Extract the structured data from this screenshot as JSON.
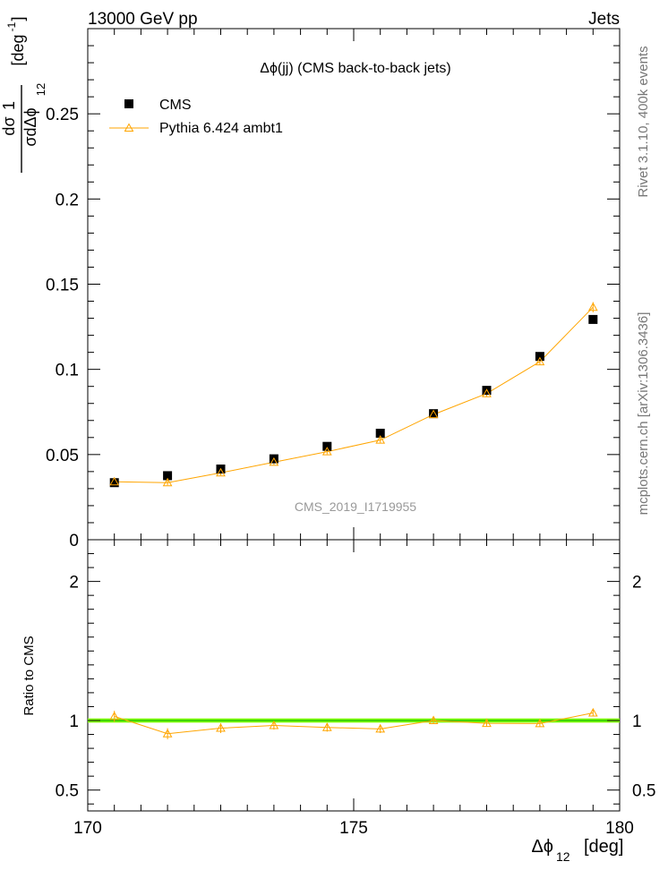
{
  "header": {
    "left": "13000 GeV pp",
    "right": "Jets",
    "side_top": "Rivet 3.1.10, 400k events",
    "side_bottom": "mcplots.cern.ch [arXiv:1306.3436]",
    "watermark": "CMS_2019_I1719955"
  },
  "chart_data": [
    {
      "type": "scatter",
      "title": "Δϕ(jj) (CMS back-to-back jets)",
      "ylabel_num": "1",
      "ylabel_d_sigma": "dσ",
      "ylabel_den": "σdΔϕ",
      "ylabel_den_sub": "12",
      "ylabel_unit": "[deg",
      "ylabel_unit_sup": "-1",
      "ylabel_unit_close": "]",
      "xlim": [
        170,
        180
      ],
      "ylim": [
        0,
        0.3
      ],
      "ytick_values": [
        0,
        0.05,
        0.1,
        0.15,
        0.2,
        0.25
      ],
      "ytick_labels": [
        "0",
        "0.05",
        "0.1",
        "0.15",
        "0.2",
        "0.25"
      ],
      "legend_placement": "top-left",
      "series": [
        {
          "name": "CMS",
          "marker": "filled-square",
          "color": "#000000",
          "x": [
            170.5,
            171.5,
            172.5,
            173.5,
            174.5,
            175.5,
            176.5,
            177.5,
            178.5,
            179.5
          ],
          "y": [
            0.0335,
            0.0376,
            0.0415,
            0.0475,
            0.0548,
            0.0625,
            0.074,
            0.0877,
            0.1076,
            0.1293
          ]
        },
        {
          "name": "Pythia 6.424 ambt1",
          "marker": "open-triangle",
          "color": "#ffa500",
          "x": [
            170.5,
            171.5,
            172.5,
            173.5,
            174.5,
            175.5,
            176.5,
            177.5,
            178.5,
            179.5
          ],
          "y": [
            0.034,
            0.0335,
            0.0393,
            0.0455,
            0.0517,
            0.0585,
            0.0735,
            0.0858,
            0.1045,
            0.1365
          ],
          "yerr": [
            0.0015,
            0.0015,
            0.0015,
            0.0015,
            0.0015,
            0.0015,
            0.0015,
            0.0018,
            0.002,
            0.003
          ]
        }
      ]
    },
    {
      "type": "scatter",
      "ylabel": "Ratio to CMS",
      "xlabel": "Δϕ",
      "xlabel_sub": "12",
      "xlabel_unit": "[deg]",
      "xlim": [
        170,
        180
      ],
      "ylim": [
        0.35,
        2.3
      ],
      "xtick_values": [
        170,
        175,
        180
      ],
      "xtick_labels": [
        "170",
        "175",
        "180"
      ],
      "ytick_values": [
        0.5,
        1,
        2
      ],
      "ytick_labels": [
        "0.5",
        "1",
        "2"
      ],
      "band": {
        "y_low": 0.985,
        "y_high": 1.015,
        "color": "#7fff00"
      },
      "reference_line": {
        "y": 1.0,
        "color": "#00aa00"
      },
      "series": [
        {
          "name": "Pythia 6.424 ambt1",
          "marker": "open-triangle",
          "color": "#ffa500",
          "x": [
            170.5,
            171.5,
            172.5,
            173.5,
            174.5,
            175.5,
            176.5,
            177.5,
            178.5,
            179.5
          ],
          "y": [
            1.03,
            0.905,
            0.945,
            0.965,
            0.95,
            0.94,
            1.0,
            0.98,
            0.978,
            1.055
          ],
          "yerr": [
            0.04,
            0.04,
            0.035,
            0.03,
            0.03,
            0.03,
            0.025,
            0.022,
            0.02,
            0.022
          ]
        }
      ]
    }
  ]
}
